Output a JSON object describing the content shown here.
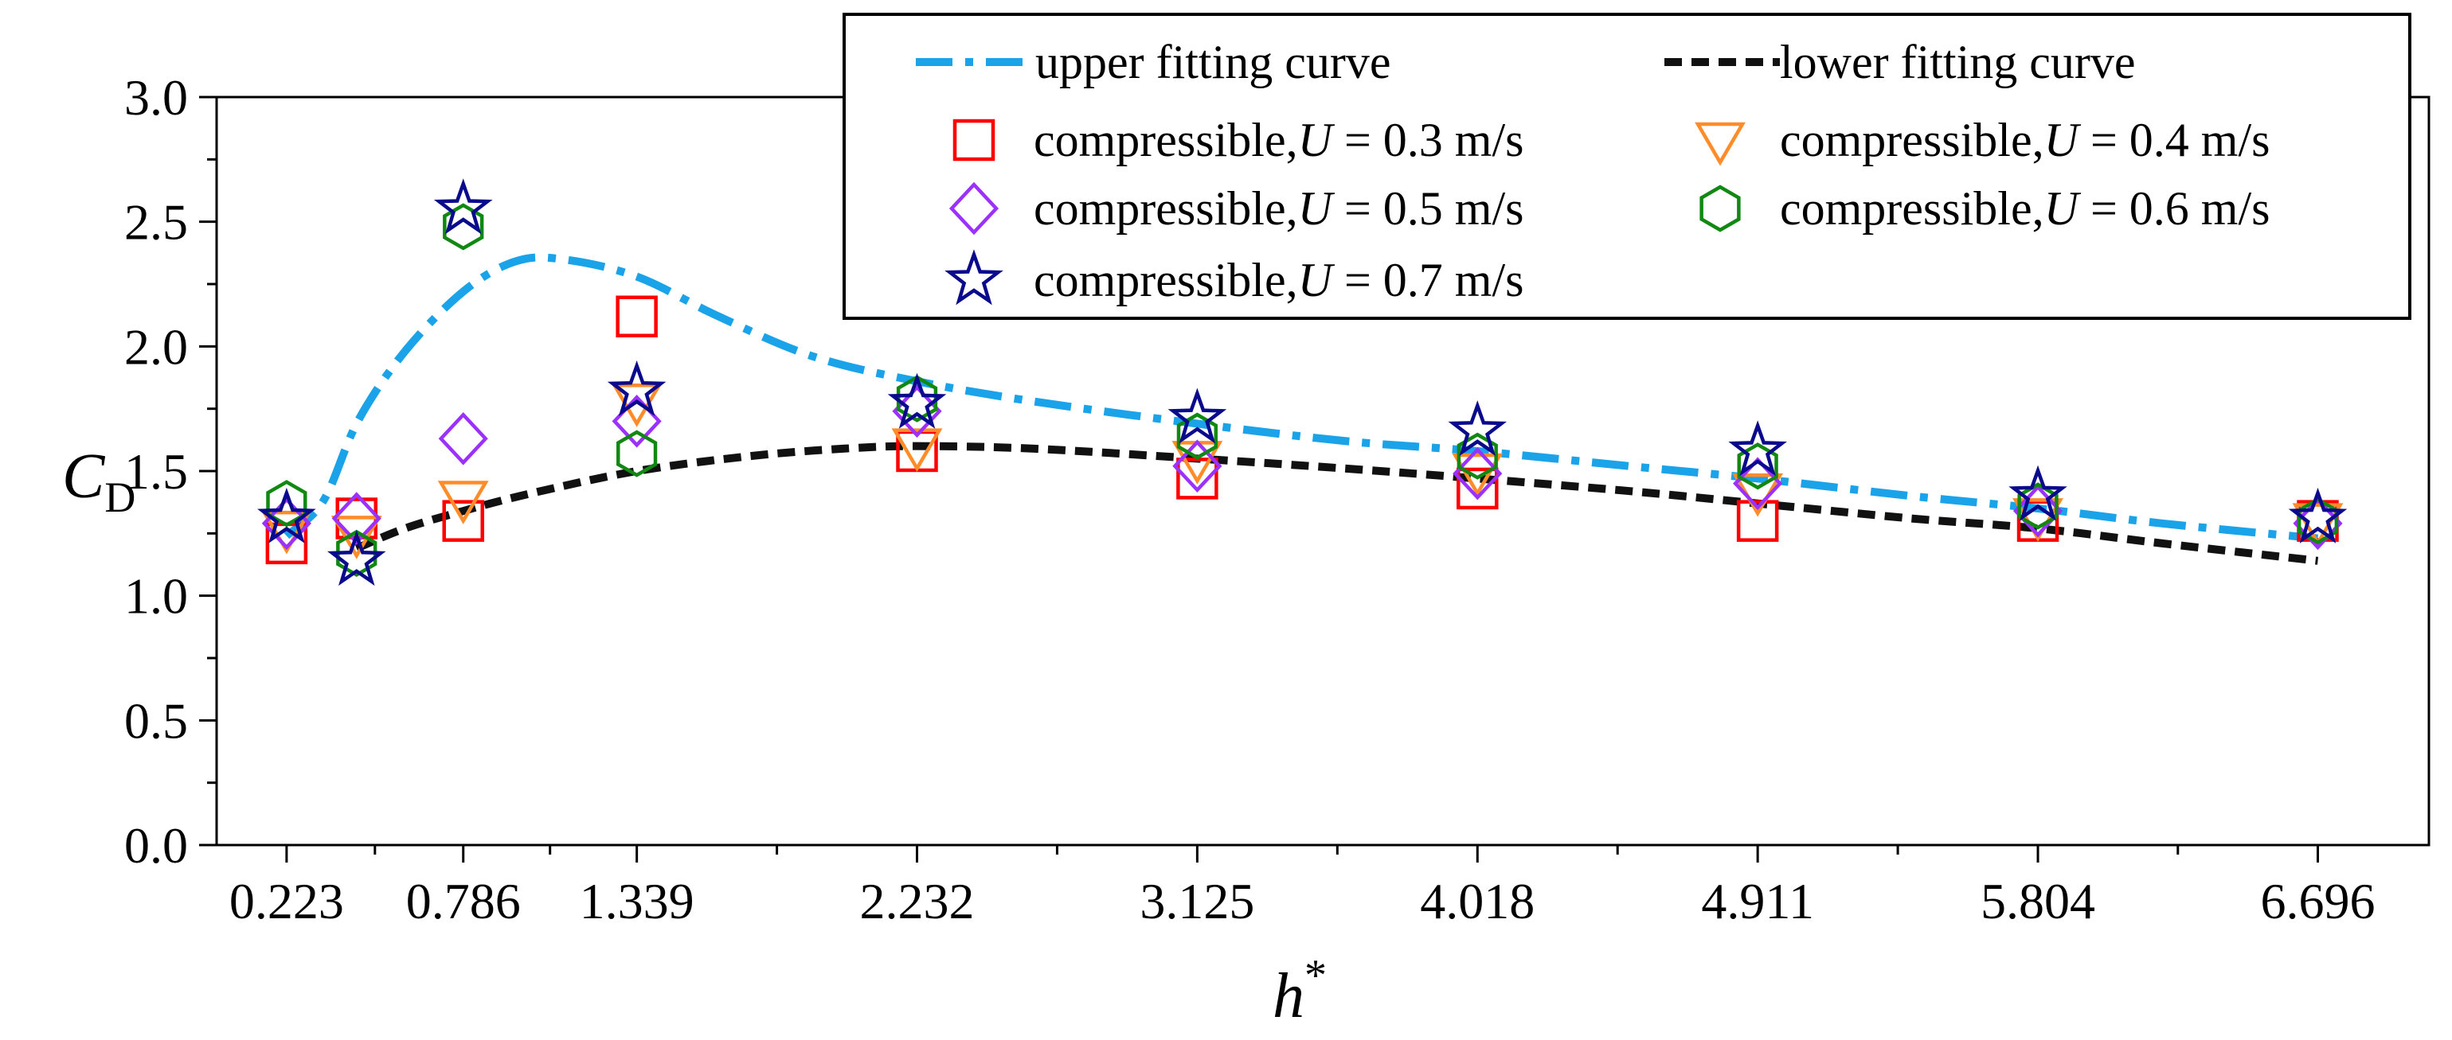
{
  "chart_data": {
    "type": "scatter",
    "title": "",
    "xlabel": "h",
    "xlabel_sup": "*",
    "ylabel": "C",
    "ylabel_sub": "D",
    "xlim": [
      0.0,
      7.05
    ],
    "ylim": [
      0.0,
      3.0
    ],
    "xticks": [
      "0.223",
      "0.786",
      "1.339",
      "2.232",
      "3.125",
      "4.018",
      "4.911",
      "5.804",
      "6.696"
    ],
    "yticks": [
      "0.0",
      "0.5",
      "1.0",
      "1.5",
      "2.0",
      "2.5",
      "3.0"
    ],
    "grid": false,
    "legend_position": "top-right",
    "x_values": [
      0.223,
      0.446,
      0.786,
      1.339,
      2.232,
      3.125,
      4.018,
      4.911,
      5.804,
      6.696
    ],
    "series": [
      {
        "name": "compressible,U = 0.3 m/s",
        "marker": "square",
        "color": "#ff0000",
        "values": [
          1.21,
          1.31,
          1.3,
          2.12,
          1.58,
          1.47,
          1.43,
          1.3,
          1.3,
          1.3
        ]
      },
      {
        "name": "compressible,U = 0.4 m/s",
        "marker": "triangle-down",
        "color": "#ff8c28",
        "values": [
          1.27,
          1.25,
          1.39,
          1.78,
          1.6,
          1.55,
          1.5,
          1.42,
          1.32,
          1.3
        ]
      },
      {
        "name": "compressible,U = 0.5 m/s",
        "marker": "diamond",
        "color": "#9b30ff",
        "values": [
          1.29,
          1.31,
          1.63,
          1.7,
          1.74,
          1.52,
          1.49,
          1.45,
          1.34,
          1.29
        ]
      },
      {
        "name": "compressible,U = 0.6 m/s",
        "marker": "hexagon",
        "color": "#118811",
        "values": [
          1.37,
          1.17,
          2.48,
          1.57,
          1.79,
          1.64,
          1.56,
          1.52,
          1.36,
          1.3
        ]
      },
      {
        "name": "compressible,U = 0.7 m/s",
        "marker": "star",
        "color": "#0a0a8c",
        "values": [
          1.31,
          1.14,
          2.55,
          1.82,
          1.77,
          1.71,
          1.66,
          1.58,
          1.4,
          1.31
        ]
      }
    ],
    "curves": [
      {
        "name": "upper fitting curve",
        "color": "#1aa3e8",
        "dash": "dashdot",
        "x": [
          0.223,
          0.34,
          0.45,
          0.6,
          0.786,
          0.95,
          1.1,
          1.339,
          1.6,
          1.9,
          2.232,
          2.6,
          3.125,
          3.6,
          4.018,
          4.5,
          4.911,
          5.4,
          5.804,
          6.2,
          6.696
        ],
        "y": [
          1.24,
          1.38,
          1.7,
          1.98,
          2.22,
          2.34,
          2.35,
          2.28,
          2.12,
          1.96,
          1.86,
          1.78,
          1.69,
          1.62,
          1.58,
          1.52,
          1.47,
          1.4,
          1.35,
          1.29,
          1.23
        ]
      },
      {
        "name": "lower fitting curve",
        "color": "#111111",
        "dash": "dash",
        "x": [
          0.446,
          0.6,
          0.786,
          1.0,
          1.339,
          1.7,
          2.0,
          2.232,
          2.6,
          3.125,
          3.6,
          4.018,
          4.5,
          4.911,
          5.4,
          5.804,
          6.2,
          6.696
        ],
        "y": [
          1.19,
          1.27,
          1.34,
          1.41,
          1.5,
          1.56,
          1.59,
          1.6,
          1.59,
          1.55,
          1.51,
          1.47,
          1.42,
          1.37,
          1.31,
          1.27,
          1.21,
          1.14
        ]
      }
    ]
  }
}
